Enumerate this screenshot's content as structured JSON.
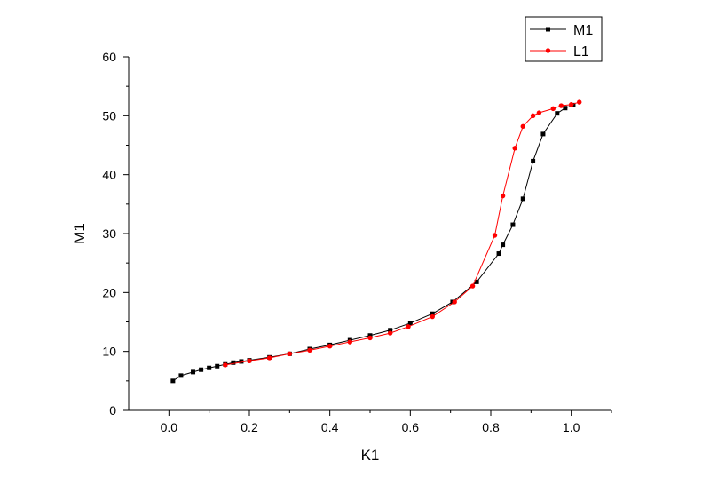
{
  "chart_data": {
    "type": "scatter",
    "title": "",
    "xlabel": "K1",
    "ylabel": "M1",
    "xlim": [
      -0.1,
      1.1
    ],
    "ylim": [
      0,
      60
    ],
    "x_ticks": [
      0.0,
      0.2,
      0.4,
      0.6,
      0.8,
      1.0
    ],
    "x_tick_labels": [
      "0.0",
      "0.2",
      "0.4",
      "0.6",
      "0.8",
      "1.0"
    ],
    "y_ticks": [
      0,
      10,
      20,
      30,
      40,
      50,
      60
    ],
    "y_tick_labels": [
      "0",
      "10",
      "20",
      "30",
      "40",
      "50",
      "60"
    ],
    "grid": false,
    "legend_position": "top-right",
    "series": [
      {
        "name": "M1",
        "color": "#000000",
        "marker": "square",
        "x": [
          0.01,
          0.03,
          0.06,
          0.08,
          0.1,
          0.12,
          0.14,
          0.16,
          0.18,
          0.2,
          0.25,
          0.3,
          0.35,
          0.4,
          0.45,
          0.5,
          0.55,
          0.6,
          0.655,
          0.705,
          0.765,
          0.82,
          0.83,
          0.855,
          0.88,
          0.905,
          0.93,
          0.965,
          0.985,
          1.005
        ],
        "y": [
          5.0,
          5.9,
          6.5,
          6.9,
          7.2,
          7.5,
          7.8,
          8.1,
          8.3,
          8.5,
          9.0,
          9.6,
          10.4,
          11.1,
          11.9,
          12.7,
          13.6,
          14.8,
          16.4,
          18.4,
          21.8,
          26.6,
          28.1,
          31.5,
          35.9,
          42.3,
          46.9,
          50.4,
          51.3,
          51.8
        ]
      },
      {
        "name": "L1",
        "color": "#ff0000",
        "marker": "circle",
        "x": [
          0.14,
          0.2,
          0.25,
          0.3,
          0.35,
          0.4,
          0.45,
          0.5,
          0.55,
          0.595,
          0.655,
          0.71,
          0.755,
          0.81,
          0.83,
          0.86,
          0.88,
          0.905,
          0.92,
          0.955,
          0.975,
          1.0,
          1.02
        ],
        "y": [
          7.7,
          8.4,
          8.9,
          9.6,
          10.2,
          10.9,
          11.6,
          12.3,
          13.1,
          14.2,
          15.9,
          18.4,
          21.1,
          29.7,
          36.4,
          44.5,
          48.2,
          50.0,
          50.5,
          51.2,
          51.7,
          51.9,
          52.3
        ]
      }
    ]
  }
}
